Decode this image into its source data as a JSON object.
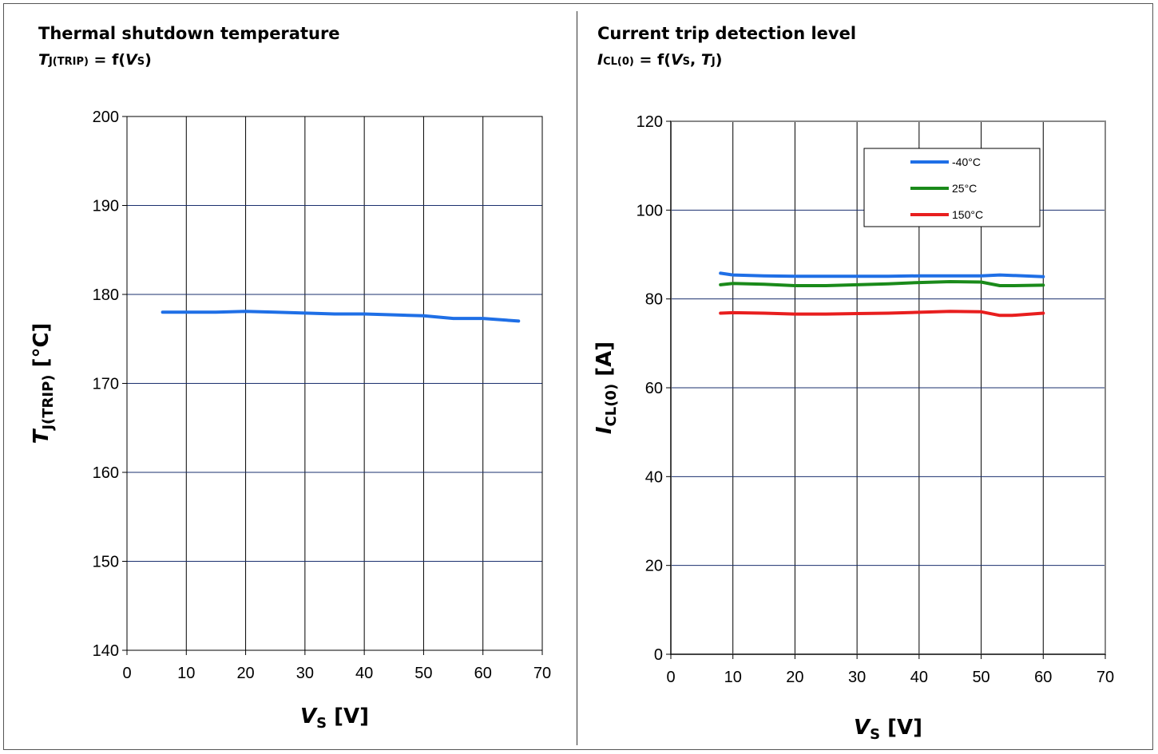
{
  "chart_data": [
    {
      "type": "line",
      "title": "Thermal shutdown temperature",
      "subtitle": {
        "sym": "T",
        "sub": "J(TRIP)",
        "rest_a": " = f(",
        "arg_sym": "V",
        "arg_sub": "S",
        "rest_b": ")"
      },
      "xlabel": {
        "sym": "V",
        "sub": "S",
        "unit": " [V]"
      },
      "ylabel": {
        "sym": "T",
        "sub": "J(TRIP)",
        "unit": " [°C]"
      },
      "xlim": [
        0,
        70
      ],
      "ylim": [
        140,
        200
      ],
      "x_ticks": [
        "0",
        "10",
        "20",
        "30",
        "40",
        "50",
        "60",
        "70"
      ],
      "y_ticks": [
        "140",
        "150",
        "160",
        "170",
        "180",
        "190",
        "200"
      ],
      "grid": true,
      "legend": null,
      "series": [
        {
          "color": "#1f6fe6",
          "x": [
            6,
            10,
            15,
            20,
            25,
            30,
            35,
            40,
            45,
            50,
            55,
            60,
            66
          ],
          "y": [
            178.0,
            178.0,
            178.0,
            178.1,
            178.0,
            177.9,
            177.8,
            177.8,
            177.7,
            177.6,
            177.3,
            177.3,
            177.0
          ]
        }
      ]
    },
    {
      "type": "line",
      "title": "Current trip detection level",
      "subtitle": {
        "sym": "I",
        "sub": "CL(0)",
        "rest_a": " = f(",
        "arg_sym": "V",
        "arg_sub": "S",
        "rest_mid": ", ",
        "arg2_sym": "T",
        "arg2_sub": "J",
        "rest_b": ")"
      },
      "xlabel": {
        "sym": "V",
        "sub": "S",
        "unit": " [V]"
      },
      "ylabel": {
        "sym": "I",
        "sub": "CL(0)",
        "unit": " [A]"
      },
      "xlim": [
        0,
        70
      ],
      "ylim": [
        0,
        120
      ],
      "x_ticks": [
        "0",
        "10",
        "20",
        "30",
        "40",
        "50",
        "60",
        "70"
      ],
      "y_ticks": [
        "0",
        "20",
        "40",
        "60",
        "80",
        "100",
        "120"
      ],
      "grid": true,
      "legend": "top-right",
      "series": [
        {
          "name": "-40°C",
          "color": "#1f6fe6",
          "x": [
            8,
            10,
            15,
            20,
            25,
            30,
            35,
            40,
            45,
            50,
            53,
            55,
            60
          ],
          "y": [
            85.8,
            85.4,
            85.2,
            85.1,
            85.1,
            85.1,
            85.1,
            85.2,
            85.2,
            85.2,
            85.4,
            85.3,
            85.0
          ]
        },
        {
          "name": "25°C",
          "color": "#1a8a1a",
          "x": [
            8,
            10,
            15,
            20,
            25,
            30,
            35,
            40,
            45,
            50,
            53,
            55,
            60
          ],
          "y": [
            83.2,
            83.5,
            83.3,
            83.0,
            83.0,
            83.2,
            83.4,
            83.7,
            83.9,
            83.8,
            83.0,
            83.0,
            83.1
          ]
        },
        {
          "name": "150°C",
          "color": "#e81e1e",
          "x": [
            8,
            10,
            15,
            20,
            25,
            30,
            35,
            40,
            45,
            50,
            53,
            55,
            60
          ],
          "y": [
            76.8,
            76.9,
            76.8,
            76.6,
            76.6,
            76.7,
            76.8,
            77.0,
            77.2,
            77.1,
            76.3,
            76.3,
            76.8
          ]
        }
      ]
    }
  ]
}
